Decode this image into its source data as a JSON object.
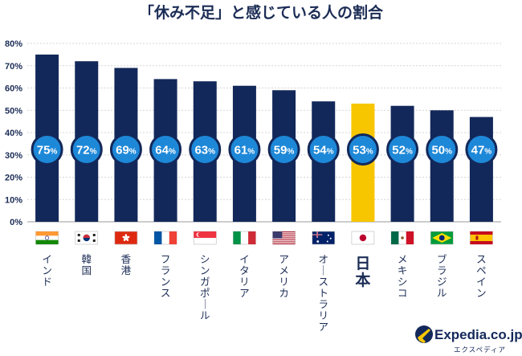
{
  "chart_data": {
    "type": "bar",
    "title": "「休み不足」と感じている人の割合",
    "xlabel": "",
    "ylabel": "",
    "ylim": [
      0,
      80
    ],
    "yticks": [
      "0%",
      "10%",
      "20%",
      "30%",
      "40%",
      "50%",
      "60%",
      "70%",
      "80%"
    ],
    "grid": true,
    "unit": "%",
    "categories": [
      "インド",
      "韓国",
      "香港",
      "フランス",
      "シンガポール",
      "イタリア",
      "アメリカ",
      "オーストラリア",
      "日本",
      "メキシコ",
      "ブラジル",
      "スペイン"
    ],
    "values": [
      75,
      72,
      69,
      64,
      63,
      61,
      59,
      54,
      53,
      52,
      50,
      47
    ],
    "highlight": "日本",
    "flags": [
      "india-flag-icon",
      "korea-flag-icon",
      "hongkong-flag-icon",
      "france-flag-icon",
      "singapore-flag-icon",
      "italy-flag-icon",
      "usa-flag-icon",
      "australia-flag-icon",
      "japan-flag-icon",
      "mexico-flag-icon",
      "brazil-flag-icon",
      "spain-flag-icon"
    ],
    "colors": {
      "bar": "#13285a",
      "highlight": "#f7c600",
      "badge": "#1e88d8",
      "badge_border": "#13285a",
      "grid": "#d6d6d6",
      "text": "#1b2c55"
    }
  },
  "brand": {
    "name": "Expedia.co.jp",
    "sub": "エクスペディア",
    "logo_icon": "expedia-plane-icon"
  }
}
